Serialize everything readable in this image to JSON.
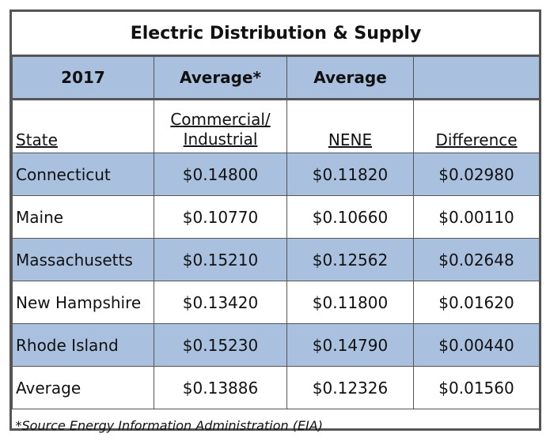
{
  "title": "Electric Distribution & Supply",
  "year_header": [
    "2017",
    "Average*",
    "Average",
    ""
  ],
  "column_headers": [
    "State",
    "Commercial/",
    "Industrial",
    "NENE",
    "Difference"
  ],
  "rows": [
    {
      "state": "Connecticut",
      "commercial_industrial": "$0.14800",
      "nene": "$0.11820",
      "difference": "$0.02980"
    },
    {
      "state": "Maine",
      "commercial_industrial": "$0.10770",
      "nene": "$0.10660",
      "difference": "$0.00110"
    },
    {
      "state": "Massachusetts",
      "commercial_industrial": "$0.15210",
      "nene": "$0.12562",
      "difference": "$0.02648"
    },
    {
      "state": "New Hampshire",
      "commercial_industrial": "$0.13420",
      "nene": "$0.11800",
      "difference": "$0.01620"
    },
    {
      "state": "Rhode Island",
      "commercial_industrial": "$0.15230",
      "nene": "$0.14790",
      "difference": "$0.00440"
    },
    {
      "state": "Average",
      "commercial_industrial": "$0.13886",
      "nene": "$0.12326",
      "difference": "$0.01560"
    }
  ],
  "footnote": "*Source Energy Information Administration (EIA)",
  "colors": {
    "shade": "#a9c0de",
    "border": "#555555"
  }
}
